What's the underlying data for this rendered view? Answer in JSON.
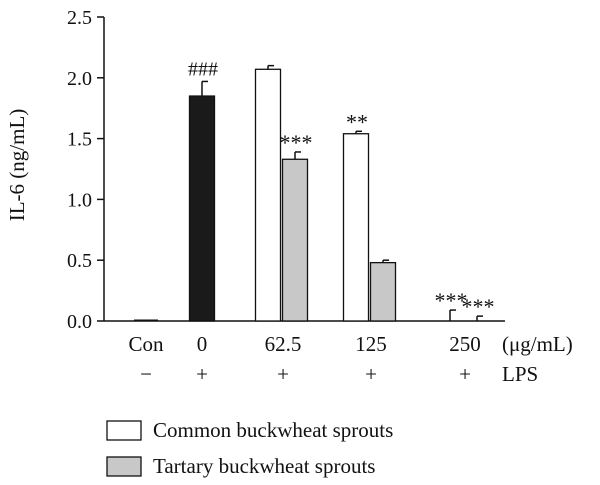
{
  "chart_data": {
    "type": "bar",
    "ylabel": "IL-6 (ng/mL)",
    "ylim": [
      0,
      2.5
    ],
    "yticks": [
      "0.0",
      "0.5",
      "1.0",
      "1.5",
      "2.0",
      "2.5"
    ],
    "categories": [
      "Con",
      "0",
      "62.5",
      "125",
      "250"
    ],
    "category_unit": "(μg/mL)",
    "lps_row": [
      "−",
      "+",
      "+",
      "+",
      "+"
    ],
    "lps_label": "LPS",
    "bars": [
      {
        "category": "Con",
        "series": "control",
        "value": 0.0,
        "error": 0.0,
        "label": ""
      },
      {
        "category": "0",
        "series": "LPS",
        "value": 1.85,
        "error": 0.12,
        "label": "###"
      },
      {
        "category": "62.5",
        "series": "Common buckwheat sprouts",
        "value": 2.07,
        "error": 0.03,
        "label": ""
      },
      {
        "category": "62.5",
        "series": "Tartary buckwheat sprouts",
        "value": 1.33,
        "error": 0.06,
        "label": "***"
      },
      {
        "category": "125",
        "series": "Common buckwheat sprouts",
        "value": 1.54,
        "error": 0.02,
        "label": "**"
      },
      {
        "category": "125",
        "series": "Tartary buckwheat sprouts",
        "value": 0.48,
        "error": 0.02,
        "label": ""
      },
      {
        "category": "250",
        "series": "Common buckwheat sprouts",
        "value": 0.0,
        "error": 0.09,
        "label": "***"
      },
      {
        "category": "250",
        "series": "Tartary buckwheat sprouts",
        "value": 0.0,
        "error": 0.04,
        "label": "***"
      }
    ],
    "legend": [
      {
        "name": "Common buckwheat sprouts",
        "color": "#ffffff"
      },
      {
        "name": "Tartary buckwheat sprouts",
        "color": "#c8c8c8"
      }
    ],
    "colors": {
      "control": "#ffffff",
      "LPS": "#1a1a1a",
      "Common buckwheat sprouts": "#ffffff",
      "Tartary buckwheat sprouts": "#c8c8c8"
    },
    "legend_position": "bottom-left",
    "grid": false
  }
}
